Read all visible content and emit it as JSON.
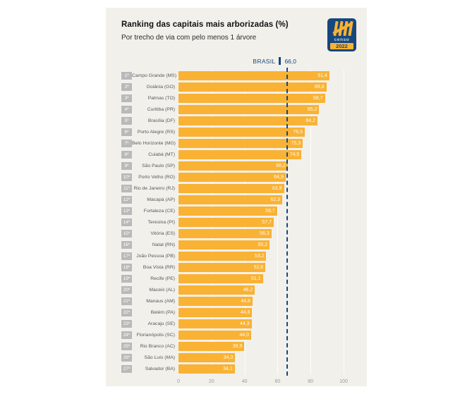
{
  "header": {
    "title": "Ranking das capitais mais arborizadas (%)",
    "subtitle": "Por trecho de via com pelo menos 1 árvore",
    "logo": {
      "name": "censo-2022-logo",
      "line1": "censo",
      "line2": "2022"
    }
  },
  "reference": {
    "label": "BRASIL",
    "value_display": "66,0",
    "value": 66.0
  },
  "chart_data": {
    "type": "bar",
    "orientation": "horizontal",
    "title": "Ranking das capitais mais arborizadas (%)",
    "subtitle": "Por trecho de via com pelo menos 1 árvore",
    "xlabel": "",
    "ylabel": "",
    "xlim": [
      0,
      100
    ],
    "x_ticks": [
      0,
      20,
      40,
      60,
      80,
      100
    ],
    "grid": true,
    "bar_color": "#f9b233",
    "reference_line": {
      "label": "BRASIL",
      "value": 66.0,
      "color": "#17477c",
      "style": "dashed"
    },
    "rows": [
      {
        "rank": "1º",
        "label": "Campo Grande (MS)",
        "value": 91.4,
        "display": "91,4"
      },
      {
        "rank": "2º",
        "label": "Goiânia (GO)",
        "value": 89.6,
        "display": "89,6"
      },
      {
        "rank": "3º",
        "label": "Palmas (TO)",
        "value": 88.7,
        "display": "88,7"
      },
      {
        "rank": "4º",
        "label": "Curitiba (PR)",
        "value": 85.2,
        "display": "85,2"
      },
      {
        "rank": "5º",
        "label": "Brasília (DF)",
        "value": 84.2,
        "display": "84,2"
      },
      {
        "rank": "6º",
        "label": "Porto Alegre (RS)",
        "value": 76.5,
        "display": "76,5"
      },
      {
        "rank": "7º",
        "label": "Belo Horizonte (MG)",
        "value": 75.3,
        "display": "75,3"
      },
      {
        "rank": "8º",
        "label": "Cuiabá (MT)",
        "value": 74.5,
        "display": "74,5"
      },
      {
        "rank": "9º",
        "label": "São Paulo (SP)",
        "value": 66.2,
        "display": "66,2"
      },
      {
        "rank": "10º",
        "label": "Porto Velho (RO)",
        "value": 64.9,
        "display": "64,9"
      },
      {
        "rank": "11º",
        "label": "Rio de Janeiro (RJ)",
        "value": 63.9,
        "display": "63,9"
      },
      {
        "rank": "12º",
        "label": "Macapá (AP)",
        "value": 62.9,
        "display": "62,9"
      },
      {
        "rank": "13º",
        "label": "Fortaleza (CE)",
        "value": 59.7,
        "display": "59,7"
      },
      {
        "rank": "14º",
        "label": "Teresina (PI)",
        "value": 57.7,
        "display": "57,7"
      },
      {
        "rank": "15º",
        "label": "Vitória (ES)",
        "value": 56.3,
        "display": "56,3"
      },
      {
        "rank": "16º",
        "label": "Natal (RN)",
        "value": 55.2,
        "display": "55,2"
      },
      {
        "rank": "17º",
        "label": "João Pessoa (PB)",
        "value": 53.2,
        "display": "53,2"
      },
      {
        "rank": "18º",
        "label": "Boa Vista (RR)",
        "value": 52.6,
        "display": "52,6"
      },
      {
        "rank": "19º",
        "label": "Recife (PE)",
        "value": 51.1,
        "display": "51,1"
      },
      {
        "rank": "20º",
        "label": "Maceió (AL)",
        "value": 46.2,
        "display": "46,2"
      },
      {
        "rank": "21º",
        "label": "Manaus (AM)",
        "value": 44.8,
        "display": "44,8"
      },
      {
        "rank": "22º",
        "label": "Belém (PA)",
        "value": 44.6,
        "display": "44,6"
      },
      {
        "rank": "23º",
        "label": "Aracaju (SE)",
        "value": 44.3,
        "display": "44,3"
      },
      {
        "rank": "24º",
        "label": "Florianópolis (SC)",
        "value": 44.0,
        "display": "44,0"
      },
      {
        "rank": "25º",
        "label": "Rio Branco (AC)",
        "value": 39.9,
        "display": "39,9"
      },
      {
        "rank": "26º",
        "label": "São Luís (MA)",
        "value": 34.3,
        "display": "34,3"
      },
      {
        "rank": "27º",
        "label": "Salvador (BA)",
        "value": 34.1,
        "display": "34,1"
      }
    ]
  }
}
